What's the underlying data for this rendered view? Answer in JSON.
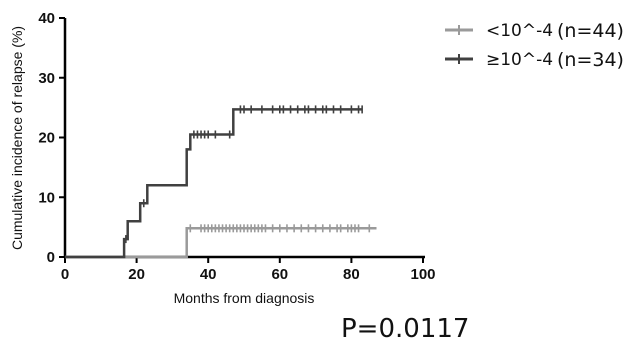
{
  "chart_data": {
    "type": "line",
    "chart_kind": "cumulative incidence step plot",
    "xlabel": "Months from diagnosis",
    "ylabel": "Cumulative incidence of relapse (%)",
    "xlim": [
      0,
      100
    ],
    "ylim": [
      0,
      40
    ],
    "x_ticks": [
      "0",
      "20",
      "40",
      "60",
      "80",
      "100"
    ],
    "y_ticks": [
      "0",
      "10",
      "20",
      "30",
      "40"
    ],
    "grid": false,
    "legend_position": "top-right",
    "p_value_text": "P=0.0117",
    "series": [
      {
        "name": "<10^-4",
        "count_label": "(n=44)",
        "color": "#9a9a9a",
        "steps": [
          [
            0,
            0
          ],
          [
            34,
            0
          ],
          [
            34,
            4.8
          ],
          [
            87,
            4.8
          ]
        ],
        "censored_x": [
          35,
          38,
          39,
          40,
          41,
          42,
          43,
          44,
          45,
          46,
          47,
          48,
          49,
          50,
          51,
          52,
          53,
          54,
          55,
          56,
          58,
          60,
          62,
          64,
          66,
          68,
          70,
          72,
          74,
          76,
          77,
          79,
          80,
          81,
          82,
          85
        ]
      },
      {
        "name": "≥10^-4",
        "count_label": "(n=34)",
        "color": "#404040",
        "steps": [
          [
            0,
            0
          ],
          [
            16.5,
            0
          ],
          [
            16.5,
            3
          ],
          [
            17.5,
            3
          ],
          [
            17.5,
            6
          ],
          [
            21,
            6
          ],
          [
            21,
            9
          ],
          [
            23,
            9
          ],
          [
            23,
            12
          ],
          [
            34,
            12
          ],
          [
            34,
            18
          ],
          [
            35,
            18
          ],
          [
            35,
            20.5
          ],
          [
            47,
            20.5
          ],
          [
            47,
            24.7
          ],
          [
            83,
            24.7
          ]
        ],
        "censored_x": [
          17,
          22,
          36,
          37,
          38,
          39,
          40,
          42,
          46,
          49,
          50,
          52,
          55,
          58,
          60,
          61,
          63,
          65,
          67,
          68,
          70,
          72,
          73,
          75,
          77,
          80,
          82,
          83
        ]
      }
    ]
  }
}
